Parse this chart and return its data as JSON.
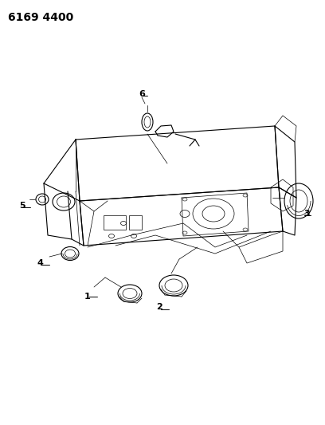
{
  "title_code": "6169 4400",
  "bg_color": "#ffffff",
  "line_color": "#000000",
  "title_fontsize": 10,
  "label_fontsize": 8,
  "fig_width": 4.08,
  "fig_height": 5.33,
  "dpi": 100,
  "xlim": [
    0,
    408
  ],
  "ylim": [
    0,
    533
  ]
}
